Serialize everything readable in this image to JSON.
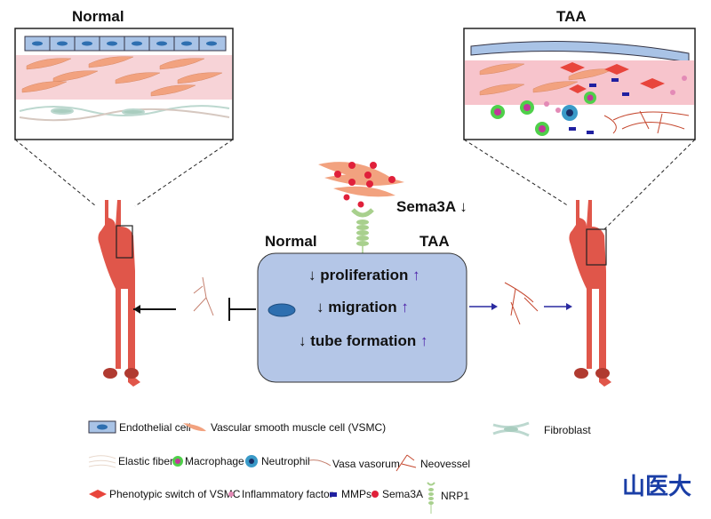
{
  "panels": {
    "normal_title": "Normal",
    "taa_title": "TAA"
  },
  "center": {
    "signal_label": "Sema3A",
    "signal_arrow": "↓",
    "normal_label": "Normal",
    "taa_label": "TAA",
    "effects": [
      {
        "down": "↓",
        "label": "proliferation",
        "up": "↑"
      },
      {
        "down": "↓",
        "label": "migration",
        "up": "↑"
      },
      {
        "down": "↓",
        "label": "tube formation",
        "up": "↑"
      }
    ]
  },
  "legend": {
    "items": [
      {
        "icon": "endothelial-cell-icon",
        "label": "Endothelial cell"
      },
      {
        "icon": "vsmc-icon",
        "label": "Vascular smooth muscle cell (VSMC)"
      },
      {
        "icon": "fibroblast-icon",
        "label": "Fibroblast"
      },
      {
        "icon": "elastic-fiber-icon",
        "label": "Elastic fiber"
      },
      {
        "icon": "macrophage-icon",
        "label": "Macrophage"
      },
      {
        "icon": "neutrophil-icon",
        "label": "Neutrophil"
      },
      {
        "icon": "vasa-vasorum-icon",
        "label": "Vasa vasorum"
      },
      {
        "icon": "neovessel-icon",
        "label": "Neovessel"
      },
      {
        "icon": "phenotypic-switch-icon",
        "label": "Phenotypic switch of VSMC"
      },
      {
        "icon": "inflammatory-factor-icon",
        "label": "Inflammatory factor"
      },
      {
        "icon": "mmps-icon",
        "label": "MMPs"
      },
      {
        "icon": "sema3a-icon",
        "label": "Sema3A"
      },
      {
        "icon": "nrp1-icon",
        "label": "NRP1"
      }
    ]
  },
  "logo": {
    "text": "山医大"
  },
  "colors": {
    "endothelial": "#a9c3e6",
    "vsmc": "#f2a27f",
    "media_pink": "#f5c9cf",
    "aorta": "#e0564a",
    "center_box": "#b4c6e7",
    "up_arrow": "#4b1fa8",
    "arrow_blue": "#2a2aa0",
    "sema3a": "#e0203a",
    "nrp1": "#a8d08d",
    "logo": "#1a3ea6"
  }
}
